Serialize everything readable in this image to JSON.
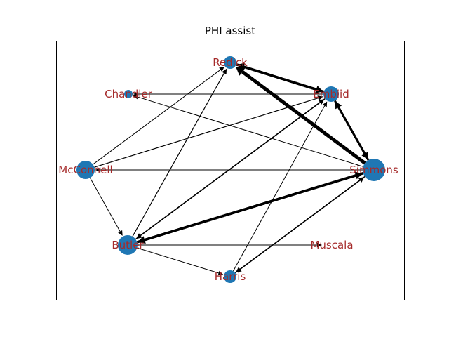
{
  "title": "PHI assist",
  "colors": {
    "node": "#1f77b4",
    "label": "#a52a2a",
    "edge": "#000000",
    "frame": "#000000"
  },
  "nodes": [
    {
      "id": "redick",
      "label": "Redick"
    },
    {
      "id": "chandler",
      "label": "Chandler"
    },
    {
      "id": "embiid",
      "label": "Embiid"
    },
    {
      "id": "mcconnell",
      "label": "McConnell"
    },
    {
      "id": "simmons",
      "label": "Simmons"
    },
    {
      "id": "butler",
      "label": "Butler"
    },
    {
      "id": "muscala",
      "label": "Muscala"
    },
    {
      "id": "harris",
      "label": "Harris"
    }
  ],
  "edges": [
    {
      "from": "simmons",
      "to": "redick",
      "weight": 5
    },
    {
      "from": "embiid",
      "to": "redick",
      "weight": 3.5
    },
    {
      "from": "redick",
      "to": "embiid",
      "weight": 3.5
    },
    {
      "from": "simmons",
      "to": "embiid",
      "weight": 3
    },
    {
      "from": "embiid",
      "to": "simmons",
      "weight": 3
    },
    {
      "from": "simmons",
      "to": "butler",
      "weight": 3.5
    },
    {
      "from": "butler",
      "to": "simmons",
      "weight": 3.5
    },
    {
      "from": "embiid",
      "to": "chandler",
      "weight": 1
    },
    {
      "from": "simmons",
      "to": "chandler",
      "weight": 1
    },
    {
      "from": "simmons",
      "to": "mcconnell",
      "weight": 1
    },
    {
      "from": "mcconnell",
      "to": "embiid",
      "weight": 1.2
    },
    {
      "from": "mcconnell",
      "to": "butler",
      "weight": 1
    },
    {
      "from": "butler",
      "to": "redick",
      "weight": 1.2
    },
    {
      "from": "butler",
      "to": "embiid",
      "weight": 1.5
    },
    {
      "from": "embiid",
      "to": "butler",
      "weight": 1.5
    },
    {
      "from": "butler",
      "to": "muscala",
      "weight": 1
    },
    {
      "from": "butler",
      "to": "harris",
      "weight": 1
    },
    {
      "from": "harris",
      "to": "embiid",
      "weight": 1
    },
    {
      "from": "harris",
      "to": "simmons",
      "weight": 1.5
    },
    {
      "from": "simmons",
      "to": "harris",
      "weight": 1.5
    },
    {
      "from": "mcconnell",
      "to": "redick",
      "weight": 1
    }
  ]
}
